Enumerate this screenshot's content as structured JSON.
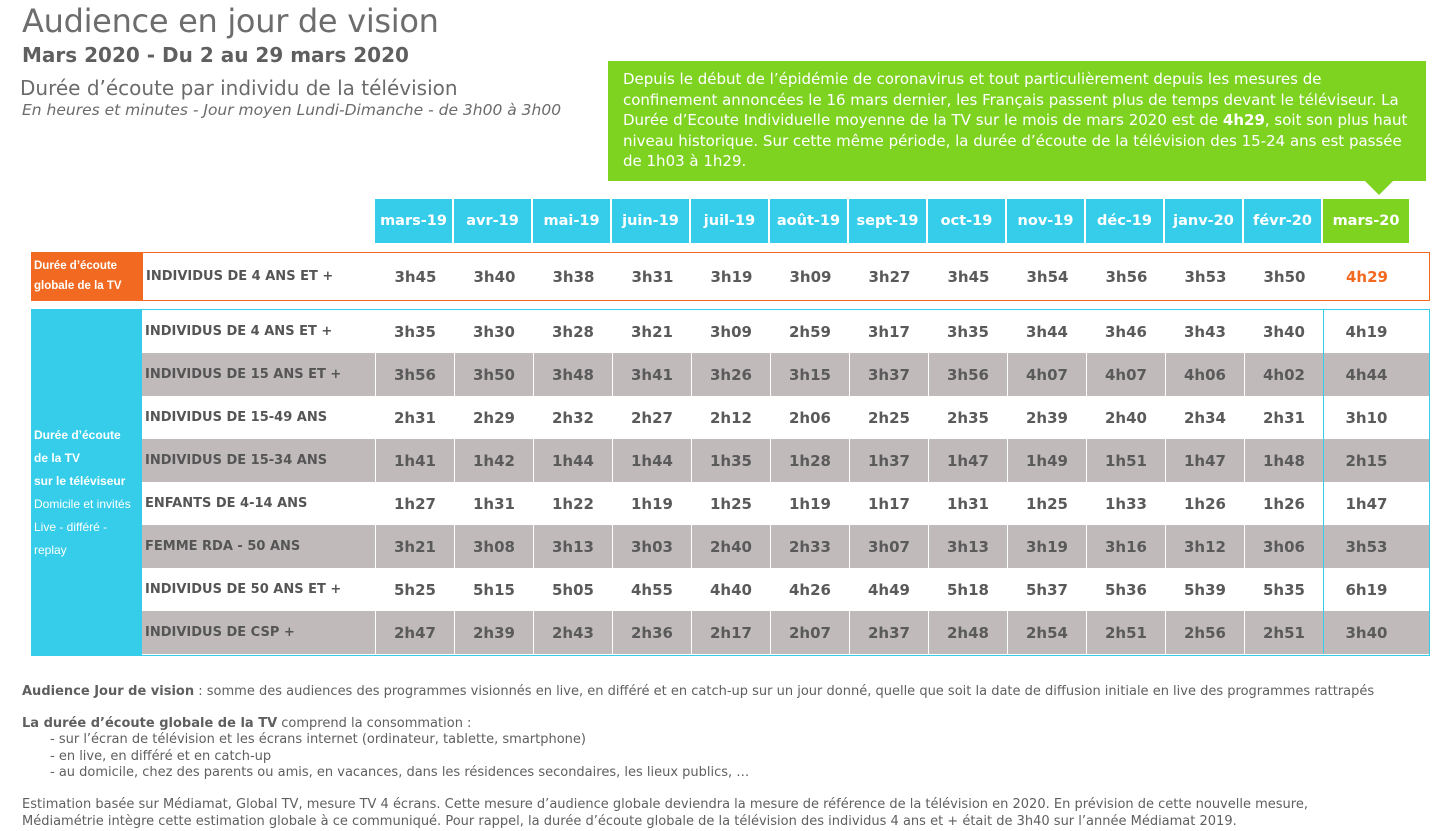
{
  "header": {
    "title": "Audience en jour de vision",
    "subtitle": "Mars 2020 - Du 2 au 29 mars 2020",
    "heading": "Durée d’écoute par individu de la télévision",
    "subheading": "En heures et minutes - Jour moyen Lundi-Dimanche - de 3h00 à 3h00"
  },
  "callout": {
    "text_before": "Depuis le début de l’épidémie de coronavirus et tout particulièrement depuis les mesures de confinement annoncées le 16 mars dernier, les Français passent plus de temps devant le téléviseur. La Durée d’Ecoute Individuelle moyenne de la TV sur le mois de mars 2020 est de ",
    "highlight": "4h29",
    "text_after": ", soit son plus haut niveau historique. Sur cette même période, la durée d’écoute de la télévision des 15-24 ans est passée de 1h03 à 1h29.",
    "color": "#7ed321"
  },
  "months": [
    "mars-19",
    "avr-19",
    "mai-19",
    "juin-19",
    "juil-19",
    "août-19",
    "sept-19",
    "oct-19",
    "nov-19",
    "déc-19",
    "janv-20",
    "févr-20",
    "mars-20"
  ],
  "global_section": {
    "label_line1": "Durée d’écoute",
    "label_line2": "globale de la TV",
    "color": "#f26a21",
    "row": {
      "label": "INDIVIDUS DE 4 ANS ET +",
      "values": [
        "3h45",
        "3h40",
        "3h38",
        "3h31",
        "3h19",
        "3h09",
        "3h27",
        "3h45",
        "3h54",
        "3h56",
        "3h53",
        "3h50",
        "4h29"
      ]
    }
  },
  "tv_section": {
    "label_line1": "Durée d’écoute",
    "label_line2": "de la TV",
    "label_line3": "sur le téléviseur",
    "label_line4": "Domicile et invités",
    "label_line5": "Live - différé - replay",
    "color": "#35cdea",
    "rows": [
      {
        "label": "INDIVIDUS DE 4 ANS ET +",
        "values": [
          "3h35",
          "3h30",
          "3h28",
          "3h21",
          "3h09",
          "2h59",
          "3h17",
          "3h35",
          "3h44",
          "3h46",
          "3h43",
          "3h40",
          "4h19"
        ]
      },
      {
        "label": "INDIVIDUS DE 15 ANS ET +",
        "values": [
          "3h56",
          "3h50",
          "3h48",
          "3h41",
          "3h26",
          "3h15",
          "3h37",
          "3h56",
          "4h07",
          "4h07",
          "4h06",
          "4h02",
          "4h44"
        ]
      },
      {
        "label": "INDIVIDUS DE 15-49 ANS",
        "values": [
          "2h31",
          "2h29",
          "2h32",
          "2h27",
          "2h12",
          "2h06",
          "2h25",
          "2h35",
          "2h39",
          "2h40",
          "2h34",
          "2h31",
          "3h10"
        ]
      },
      {
        "label": "INDIVIDUS DE 15-34 ANS",
        "values": [
          "1h41",
          "1h42",
          "1h44",
          "1h44",
          "1h35",
          "1h28",
          "1h37",
          "1h47",
          "1h49",
          "1h51",
          "1h47",
          "1h48",
          "2h15"
        ]
      },
      {
        "label": "ENFANTS DE 4-14 ANS",
        "values": [
          "1h27",
          "1h31",
          "1h22",
          "1h19",
          "1h25",
          "1h19",
          "1h17",
          "1h31",
          "1h25",
          "1h33",
          "1h26",
          "1h26",
          "1h47"
        ]
      },
      {
        "label": "FEMME RDA - 50 ANS",
        "values": [
          "3h21",
          "3h08",
          "3h13",
          "3h03",
          "2h40",
          "2h33",
          "3h07",
          "3h13",
          "3h19",
          "3h16",
          "3h12",
          "3h06",
          "3h53"
        ]
      },
      {
        "label": "INDIVIDUS DE 50 ANS ET +",
        "values": [
          "5h25",
          "5h15",
          "5h05",
          "4h55",
          "4h40",
          "4h26",
          "4h49",
          "5h18",
          "5h37",
          "5h36",
          "5h39",
          "5h35",
          "6h19"
        ]
      },
      {
        "label": "INDIVIDUS DE CSP +",
        "values": [
          "2h47",
          "2h39",
          "2h43",
          "2h36",
          "2h17",
          "2h07",
          "2h37",
          "2h48",
          "2h54",
          "2h51",
          "2h56",
          "2h51",
          "3h40"
        ]
      }
    ]
  },
  "notes": {
    "n1_bold": "Audience Jour de vision",
    "n1_text": " : somme des audiences des programmes visionnés en live, en différé et en catch-up sur un jour donné, quelle que soit la date de diffusion initiale en live des programmes rattrapés",
    "n2_bold": "La durée d’écoute globale de la TV",
    "n2_text": " comprend la consommation :",
    "bullets": [
      "- sur l’écran de télévision et les écrans internet (ordinateur, tablette, smartphone)",
      "- en live, en différé et en catch-up",
      "- au domicile, chez des parents ou amis, en vacances, dans les résidences secondaires, les lieux publics, …"
    ],
    "n3_line1": "Estimation basée sur Médiamat, Global TV, mesure TV 4 écrans. Cette mesure d’audience globale deviendra la mesure de référence de la télévision en 2020. En prévision de cette nouvelle mesure,",
    "n3_line2": "Médiamétrie intègre cette estimation globale à ce communiqué. Pour rappel, la durée d’écoute globale de la télévision des individus 4 ans et + était de 3h40 sur l’année Médiamat 2019."
  }
}
